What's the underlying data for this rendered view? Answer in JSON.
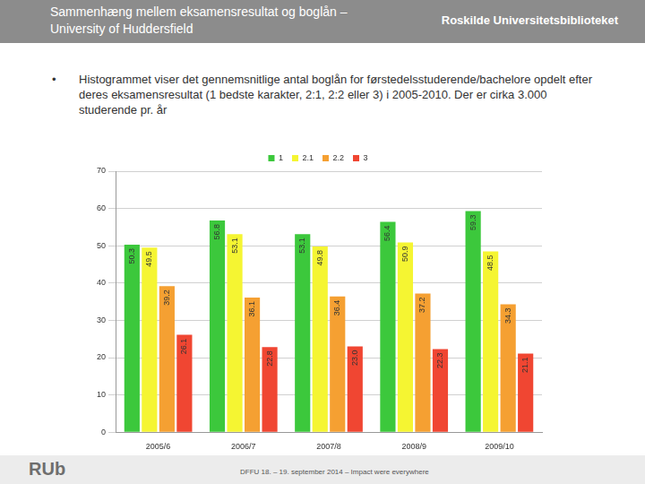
{
  "header": {
    "title": "Sammenhæng mellem eksamensresultat og boglån – University of Huddersfield",
    "logo": "Roskilde Universitetsbiblioteket"
  },
  "bullets": [
    "Histogrammet viser det gennemsnitlige antal boglån for førstedelsstuderende/bachelore opdelt efter deres eksamensresultat (1 bedste karakter, 2:1, 2:2 eller 3) i 2005-2010. Der er cirka 3.000 studerende pr. år"
  ],
  "footer": {
    "logo": "RUb",
    "text": "DFFU 18. – 19. september 2014 – Impact were everywhere"
  },
  "chart_data": {
    "type": "bar",
    "categories": [
      "2005/6",
      "2006/7",
      "2007/8",
      "2008/9",
      "2009/10"
    ],
    "series": [
      {
        "name": "1",
        "color": "#3cc83c",
        "values": [
          50.3,
          56.8,
          53.1,
          56.4,
          59.3
        ],
        "value_labels": [
          "50.3",
          "56.8",
          "53.1",
          "56.4",
          "59.3"
        ]
      },
      {
        "name": "2.1",
        "color": "#f5f532",
        "values": [
          49.5,
          53.1,
          49.8,
          50.9,
          48.5
        ],
        "value_labels": [
          "49.5",
          "53.1",
          "49.8",
          "50.9",
          "48.5"
        ]
      },
      {
        "name": "2.2",
        "color": "#f5a032",
        "values": [
          39.2,
          36.1,
          36.4,
          37.2,
          34.3
        ],
        "value_labels": [
          "39.2",
          "36.1",
          "36.4",
          "37.2",
          "34.3"
        ]
      },
      {
        "name": "3",
        "color": "#f04632",
        "values": [
          26.1,
          22.8,
          23.0,
          22.3,
          21.1
        ],
        "value_labels": [
          "26.1",
          "22.8",
          "23.0",
          "22.3",
          "21.1"
        ]
      }
    ],
    "ylim": [
      0,
      70
    ],
    "yticks": [
      0,
      10,
      20,
      30,
      40,
      50,
      60,
      70
    ],
    "grid": true,
    "legend": "top",
    "data_labels": true
  }
}
